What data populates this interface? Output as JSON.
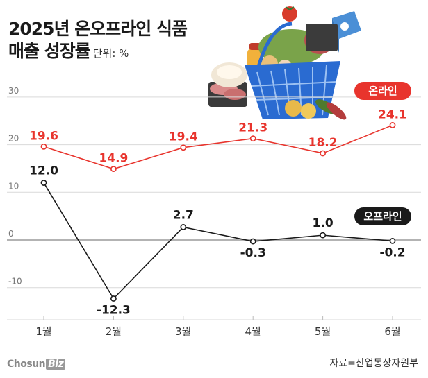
{
  "header": {
    "title_line1": "2025년 온오프라인 식품",
    "title_line2": "매출 성장률",
    "unit": "단위: %"
  },
  "footer": {
    "logo_text": "Chosun",
    "logo_badge": "Biz",
    "source": "자료=산업통상자원부"
  },
  "colors": {
    "online": "#e8342d",
    "offline": "#1a1a1a",
    "grid": "#d9d9d9",
    "zero_line": "#9a9a9a"
  },
  "chart_data": {
    "type": "line",
    "title": "2025년 온오프라인 식품 매출 성장률",
    "ylabel": "",
    "xlabel": "",
    "unit": "%",
    "categories": [
      "1월",
      "2월",
      "3월",
      "4월",
      "5월",
      "6월"
    ],
    "yticks": [
      "30",
      "20",
      "10",
      "0",
      "-10"
    ],
    "ylim": [
      -16,
      33
    ],
    "series": [
      {
        "name": "온라인",
        "color": "#e8342d",
        "values": [
          19.6,
          14.9,
          19.4,
          21.3,
          18.2,
          24.1
        ],
        "labels": [
          "19.6",
          "14.9",
          "19.4",
          "21.3",
          "18.2",
          "24.1"
        ]
      },
      {
        "name": "오프라인",
        "color": "#1a1a1a",
        "values": [
          12.0,
          -12.3,
          2.7,
          -0.3,
          1.0,
          -0.2
        ],
        "labels": [
          "12.0",
          "-12.3",
          "2.7",
          "-0.3",
          "1.0",
          "-0.2"
        ]
      }
    ],
    "grid": true,
    "legend": "inline labels"
  }
}
